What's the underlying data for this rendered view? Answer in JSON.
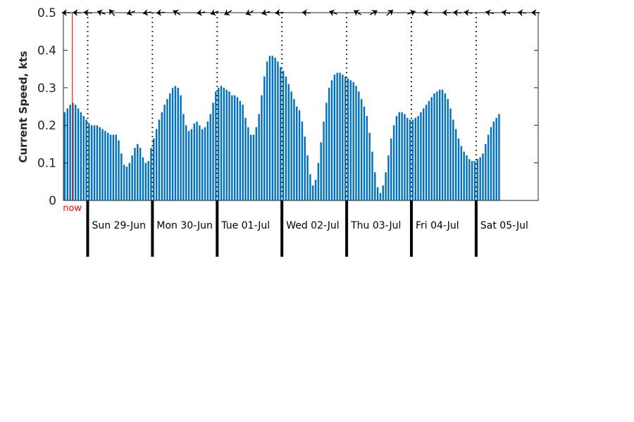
{
  "chart_data": {
    "type": "bar",
    "ylabel": "Current Speed, kts",
    "ylim": [
      0,
      0.5
    ],
    "yticks": [
      "0",
      "0.1",
      "0.2",
      "0.3",
      "0.4",
      "0.5"
    ],
    "x_unit": "hours_from_sat_28_jun_1500",
    "xlim": [
      0,
      176
    ],
    "bar_color": "#0072bd",
    "grid": false,
    "now_label": "now",
    "now_x": 3.3,
    "now_color": "#ff0000",
    "day_boundaries": [
      {
        "x": 9,
        "label": "Sun 29-Jun"
      },
      {
        "x": 33,
        "label": "Mon 30-Jun"
      },
      {
        "x": 57,
        "label": "Tue 01-Jul"
      },
      {
        "x": 81,
        "label": "Wed 02-Jul"
      },
      {
        "x": 105,
        "label": "Thu 03-Jul"
      },
      {
        "x": 129,
        "label": "Fri 04-Jul"
      },
      {
        "x": 153,
        "label": "Sat 05-Jul"
      }
    ],
    "speeds": [
      0.235,
      0.245,
      0.255,
      0.26,
      0.255,
      0.245,
      0.235,
      0.225,
      0.215,
      0.205,
      0.2,
      0.2,
      0.2,
      0.195,
      0.19,
      0.185,
      0.18,
      0.175,
      0.175,
      0.175,
      0.16,
      0.125,
      0.095,
      0.09,
      0.1,
      0.12,
      0.14,
      0.15,
      0.14,
      0.115,
      0.1,
      0.105,
      0.14,
      0.165,
      0.19,
      0.215,
      0.235,
      0.255,
      0.27,
      0.285,
      0.3,
      0.305,
      0.3,
      0.28,
      0.23,
      0.2,
      0.185,
      0.19,
      0.205,
      0.21,
      0.2,
      0.19,
      0.195,
      0.21,
      0.23,
      0.26,
      0.29,
      0.3,
      0.305,
      0.3,
      0.295,
      0.29,
      0.28,
      0.28,
      0.275,
      0.265,
      0.255,
      0.22,
      0.195,
      0.175,
      0.175,
      0.195,
      0.23,
      0.28,
      0.33,
      0.37,
      0.385,
      0.385,
      0.38,
      0.37,
      0.355,
      0.345,
      0.33,
      0.31,
      0.29,
      0.27,
      0.25,
      0.24,
      0.21,
      0.17,
      0.12,
      0.07,
      0.04,
      0.055,
      0.1,
      0.155,
      0.21,
      0.26,
      0.3,
      0.32,
      0.335,
      0.34,
      0.34,
      0.335,
      0.33,
      0.325,
      0.32,
      0.315,
      0.305,
      0.29,
      0.27,
      0.25,
      0.225,
      0.18,
      0.13,
      0.075,
      0.035,
      0.02,
      0.04,
      0.075,
      0.12,
      0.165,
      0.2,
      0.225,
      0.235,
      0.235,
      0.23,
      0.22,
      0.215,
      0.215,
      0.22,
      0.225,
      0.235,
      0.245,
      0.255,
      0.265,
      0.275,
      0.285,
      0.29,
      0.295,
      0.295,
      0.285,
      0.27,
      0.245,
      0.215,
      0.19,
      0.165,
      0.145,
      0.13,
      0.12,
      0.11,
      0.105,
      0.105,
      0.11,
      0.115,
      0.125,
      0.15,
      0.175,
      0.195,
      0.21,
      0.22,
      0.23
    ],
    "arrows": [
      {
        "x": 1,
        "dir": 180
      },
      {
        "x": 5,
        "dir": 178
      },
      {
        "x": 9,
        "dir": 175
      },
      {
        "x": 14,
        "dir": 160
      },
      {
        "x": 18,
        "dir": 130
      },
      {
        "x": 25,
        "dir": 200
      },
      {
        "x": 31,
        "dir": 190
      },
      {
        "x": 36,
        "dir": 185
      },
      {
        "x": 42,
        "dir": 150
      },
      {
        "x": 51,
        "dir": 190
      },
      {
        "x": 56,
        "dir": 200
      },
      {
        "x": 61,
        "dir": 210
      },
      {
        "x": 69,
        "dir": 205
      },
      {
        "x": 75,
        "dir": 195
      },
      {
        "x": 80,
        "dir": 185
      },
      {
        "x": 90,
        "dir": 175
      },
      {
        "x": 100,
        "dir": 160
      },
      {
        "x": 109,
        "dir": 150
      },
      {
        "x": 115,
        "dir": 30
      },
      {
        "x": 121,
        "dir": 40
      },
      {
        "x": 129,
        "dir": 20
      },
      {
        "x": 135,
        "dir": 185
      },
      {
        "x": 142,
        "dir": 180
      },
      {
        "x": 146,
        "dir": 175
      },
      {
        "x": 150,
        "dir": 172
      },
      {
        "x": 158,
        "dir": 168
      },
      {
        "x": 164,
        "dir": 170
      },
      {
        "x": 170,
        "dir": 175
      },
      {
        "x": 175,
        "dir": 178
      }
    ]
  }
}
